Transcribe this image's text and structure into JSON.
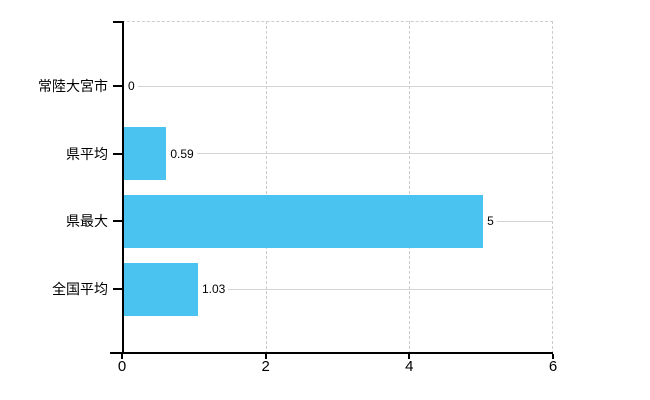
{
  "chart_data": {
    "type": "bar",
    "orientation": "horizontal",
    "title": "",
    "categories": [
      "常陸大宮市",
      "県平均",
      "県最大",
      "全国平均"
    ],
    "values": [
      0,
      0.59,
      5,
      1.03
    ],
    "value_labels": [
      "0",
      "0.59",
      "5",
      "1.03"
    ],
    "xlim": [
      0,
      6
    ],
    "xticks": [
      0,
      2,
      4,
      6
    ],
    "xtick_labels": [
      "0",
      "2",
      "4",
      "6"
    ],
    "bar_color": "#4ac3f0",
    "axis_color": "#000000",
    "gridline_color": "#cccccc",
    "leader_line_color": "#d3d3d3",
    "background_color": "#ffffff",
    "grid": true,
    "legend_position": "none"
  }
}
